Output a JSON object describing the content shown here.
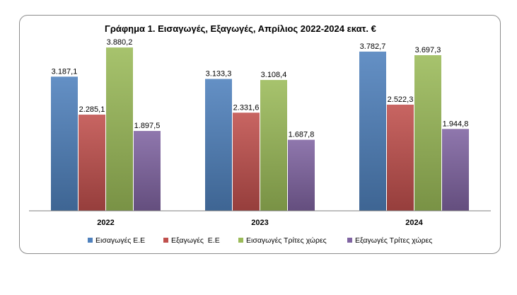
{
  "chart_data": {
    "type": "bar",
    "title": "Γράφημα 1. Εισαγωγές, Εξαγωγές, Απρίλιος 2022-2024 εκατ. €",
    "categories": [
      "2022",
      "2023",
      "2024"
    ],
    "series": [
      {
        "name": "Εισαγωγές Ε.Ε",
        "color": "#4f81bd",
        "values": [
          3187.1,
          3133.3,
          3782.7
        ],
        "labels": [
          "3.187,1",
          "3.133,3",
          "3.782,7"
        ]
      },
      {
        "name": "Εξαγωγές  Ε.Ε",
        "color": "#c0504d",
        "values": [
          2285.1,
          2331.6,
          2522.3
        ],
        "labels": [
          "2.285,1",
          "2.331,6",
          "2.522,3"
        ]
      },
      {
        "name": "Εισαγωγές Τρίτες χώρες",
        "color": "#9bbb59",
        "values": [
          3880.2,
          3108.4,
          3697.3
        ],
        "labels": [
          "3.880,2",
          "3.108,4",
          "3.697,3"
        ]
      },
      {
        "name": "Εξαγωγές Τρίτες χώρες",
        "color": "#8064a2",
        "values": [
          1897.5,
          1687.8,
          1944.8
        ],
        "labels": [
          "1.897,5",
          "1.687,8",
          "1.944,8"
        ]
      }
    ],
    "ylim": [
      0,
      4000
    ],
    "grid": false,
    "legend": "bottom"
  }
}
